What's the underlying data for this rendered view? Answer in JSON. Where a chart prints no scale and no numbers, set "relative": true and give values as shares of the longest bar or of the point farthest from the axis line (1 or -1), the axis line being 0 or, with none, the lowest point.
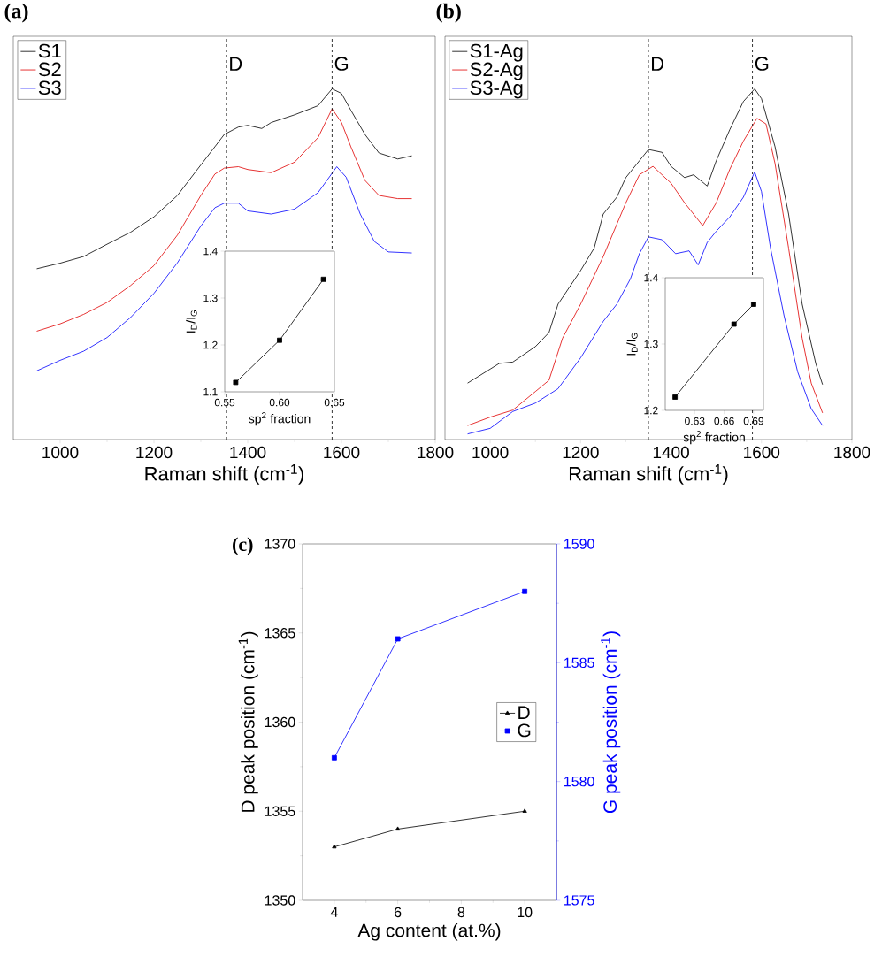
{
  "chart_data": [
    {
      "type": "line",
      "title": "(a)",
      "xlabel": "Raman shift (cm$^{-1}$)",
      "relative": true,
      "xlim": [
        900,
        1800
      ],
      "xticks": [
        1000,
        1200,
        1400,
        1600,
        1800
      ],
      "legend": "top left",
      "ref_lines": [
        {
          "axis": "x",
          "value": 1355,
          "label": "D",
          "line_style": "dashed"
        },
        {
          "axis": "x",
          "value": 1580,
          "label": "G",
          "line_style": "dashed"
        }
      ],
      "series": [
        {
          "name": "S1",
          "color": "#000000",
          "x": [
            950,
            1000,
            1050,
            1100,
            1150,
            1200,
            1250,
            1300,
            1330,
            1350,
            1380,
            1400,
            1430,
            1450,
            1500,
            1550,
            1580,
            1600,
            1620,
            1650,
            1680,
            1720,
            1750
          ],
          "values": [
            0.487,
            0.503,
            0.522,
            0.557,
            0.591,
            0.635,
            0.696,
            0.783,
            0.835,
            0.87,
            0.891,
            0.896,
            0.887,
            0.904,
            0.926,
            0.952,
            1.0,
            0.987,
            0.939,
            0.87,
            0.817,
            0.8,
            0.809
          ]
        },
        {
          "name": "S2",
          "color": "#e00000",
          "x": [
            950,
            1000,
            1050,
            1100,
            1150,
            1200,
            1250,
            1300,
            1330,
            1350,
            1380,
            1400,
            1450,
            1500,
            1550,
            1580,
            1600,
            1620,
            1650,
            1680,
            1720,
            1750
          ],
          "values": [
            0.309,
            0.33,
            0.357,
            0.391,
            0.439,
            0.496,
            0.583,
            0.696,
            0.757,
            0.774,
            0.778,
            0.77,
            0.761,
            0.791,
            0.861,
            0.943,
            0.904,
            0.835,
            0.739,
            0.696,
            0.687,
            0.687
          ]
        },
        {
          "name": "S3",
          "color": "#0000ff",
          "x": [
            950,
            1000,
            1050,
            1100,
            1150,
            1200,
            1250,
            1300,
            1330,
            1350,
            1380,
            1400,
            1450,
            1500,
            1550,
            1590,
            1610,
            1640,
            1670,
            1700,
            1750
          ],
          "values": [
            0.196,
            0.226,
            0.252,
            0.291,
            0.348,
            0.417,
            0.504,
            0.609,
            0.661,
            0.674,
            0.674,
            0.652,
            0.643,
            0.657,
            0.704,
            0.778,
            0.748,
            0.643,
            0.565,
            0.535,
            0.532
          ]
        }
      ]
    },
    {
      "type": "line",
      "xlabel": "sp$^{2}$ fraction",
      "ylabel": "I$_{D}$/I$_{G}$",
      "xlim": [
        0.55,
        0.65
      ],
      "xticks": [
        0.55,
        {
          "value": 0.6,
          "label": "0.60"
        },
        0.65
      ],
      "ylim": [
        1.1,
        1.4
      ],
      "yticks": [
        1.1,
        1.2,
        1.3,
        1.4
      ],
      "marker": "square",
      "x": [
        0.56,
        0.6,
        0.64
      ],
      "series": [
        {
          "color": "#000000",
          "values": [
            1.12,
            1.21,
            1.34
          ]
        }
      ]
    },
    {
      "type": "line",
      "title": "(b)",
      "xlabel": "Raman shift (cm$^{-1}$)",
      "relative": true,
      "xlim": [
        900,
        1800
      ],
      "xticks": [
        1000,
        1200,
        1400,
        1600,
        1800
      ],
      "legend": "top left",
      "ref_lines": [
        {
          "axis": "x",
          "value": 1350,
          "label": "D",
          "line_style": "dashed"
        },
        {
          "axis": "x",
          "value": 1580,
          "label": "G",
          "line_style": "dashed"
        }
      ],
      "series": [
        {
          "name": "S1-Ag",
          "color": "#000000",
          "x": [
            950,
            1000,
            1020,
            1050,
            1100,
            1130,
            1150,
            1200,
            1230,
            1250,
            1280,
            1300,
            1330,
            1350,
            1380,
            1400,
            1430,
            1450,
            1480,
            1500,
            1530,
            1560,
            1585,
            1600,
            1630,
            1660,
            1690,
            1720,
            1735
          ],
          "values": [
            0.161,
            0.201,
            0.217,
            0.221,
            0.265,
            0.305,
            0.386,
            0.482,
            0.546,
            0.643,
            0.691,
            0.747,
            0.795,
            0.827,
            0.819,
            0.779,
            0.747,
            0.755,
            0.723,
            0.795,
            0.884,
            0.964,
            1.0,
            0.972,
            0.835,
            0.643,
            0.386,
            0.217,
            0.157
          ]
        },
        {
          "name": "S2-Ag",
          "color": "#e00000",
          "x": [
            950,
            1000,
            1050,
            1100,
            1130,
            1160,
            1200,
            1250,
            1300,
            1330,
            1360,
            1400,
            1430,
            1470,
            1500,
            1530,
            1560,
            1590,
            1610,
            1630,
            1660,
            1690,
            1710,
            1735
          ],
          "values": [
            0.04,
            0.064,
            0.084,
            0.137,
            0.169,
            0.289,
            0.386,
            0.522,
            0.675,
            0.755,
            0.779,
            0.731,
            0.675,
            0.61,
            0.675,
            0.771,
            0.851,
            0.916,
            0.9,
            0.787,
            0.546,
            0.289,
            0.161,
            0.076
          ]
        },
        {
          "name": "S3-Ag",
          "color": "#0000ff",
          "x": [
            950,
            1000,
            1050,
            1100,
            1150,
            1200,
            1250,
            1280,
            1310,
            1330,
            1350,
            1380,
            1410,
            1440,
            1460,
            1480,
            1500,
            1530,
            1560,
            1585,
            1600,
            1620,
            1650,
            1680,
            1710,
            1735
          ],
          "values": [
            0.016,
            0.032,
            0.08,
            0.104,
            0.145,
            0.233,
            0.337,
            0.386,
            0.458,
            0.53,
            0.578,
            0.57,
            0.53,
            0.538,
            0.498,
            0.562,
            0.594,
            0.635,
            0.691,
            0.763,
            0.707,
            0.546,
            0.353,
            0.193,
            0.088,
            0.04
          ]
        }
      ]
    },
    {
      "type": "line",
      "xlabel": "sp$^{2}$ fraction",
      "ylabel": "I$_{D}$/I$_{G}$",
      "xlim": [
        0.6,
        0.7
      ],
      "xticks": [
        0.63,
        0.66,
        0.69
      ],
      "ylim": [
        1.2,
        1.4
      ],
      "yticks": [
        1.2,
        1.3,
        1.4
      ],
      "marker": "square",
      "x": [
        0.61,
        0.67,
        0.69
      ],
      "series": [
        {
          "color": "#000000",
          "values": [
            1.22,
            1.33,
            1.36
          ]
        }
      ]
    },
    {
      "type": "line",
      "title": "(c)",
      "xlabel": "Ag content (at.%)",
      "ylabel": "D peak position (cm$^{-1}$)",
      "y2label": "G peak position (cm$^{-1}$)",
      "xlim": [
        3,
        11
      ],
      "xticks": [
        4,
        6,
        8,
        10
      ],
      "ylim": [
        1350,
        1370
      ],
      "yticks": [
        1350,
        1355,
        1360,
        1365,
        1370
      ],
      "y2lim": [
        1575,
        1590
      ],
      "y2ticks": [
        1575,
        1580,
        1585,
        1590
      ],
      "legend": "right",
      "x": [
        4,
        6,
        10
      ],
      "series": [
        {
          "name": "D",
          "color": "#000000",
          "marker": "triangle",
          "values": [
            1353,
            1354,
            1355
          ]
        },
        {
          "name": "G",
          "color": "#0000ff",
          "marker": "square",
          "axis": "y2",
          "values": [
            1581,
            1586,
            1588
          ]
        }
      ]
    }
  ]
}
